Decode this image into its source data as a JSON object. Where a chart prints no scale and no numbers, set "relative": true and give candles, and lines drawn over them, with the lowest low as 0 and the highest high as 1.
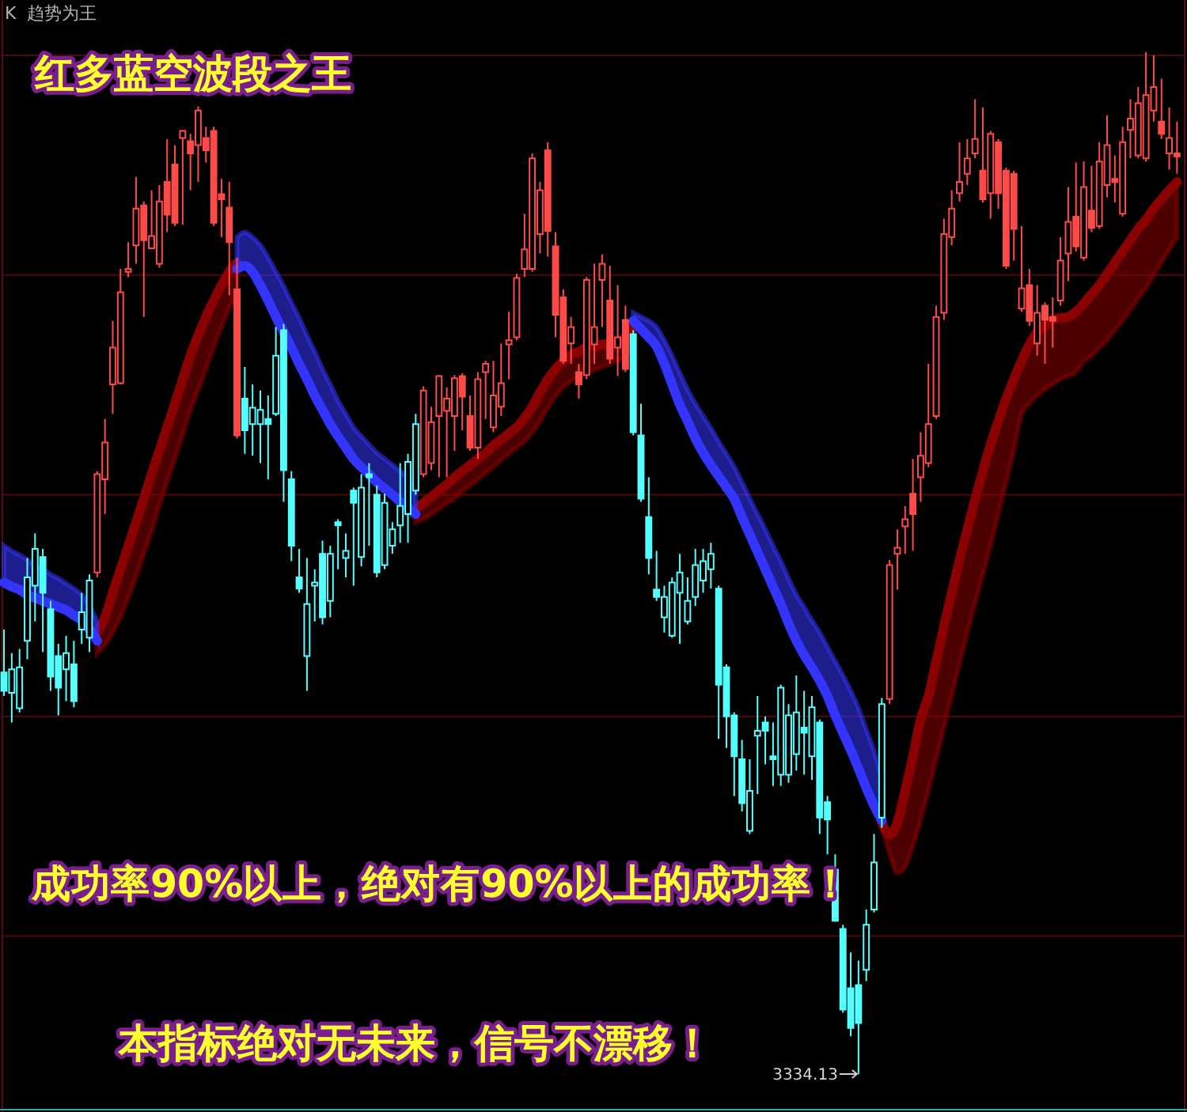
{
  "chart_data": {
    "type": "candlestick",
    "title": "红多蓝空波段之王",
    "subtitle": "K  趋势为王",
    "relative": true,
    "annotations": [
      "成功率90%以上，绝对有90%以上的成功率！",
      "本指标绝对无未来，信号不漂移！",
      "3334.13"
    ],
    "ref_lines": [
      {
        "axis": "y",
        "value": 0.997,
        "color": "#4e0a0a"
      },
      {
        "axis": "y",
        "value": 0.782,
        "color": "#4e0a0a"
      },
      {
        "axis": "y",
        "value": 0.567,
        "color": "#4e0a0a"
      },
      {
        "axis": "y",
        "value": 0.35,
        "color": "#4e0a0a"
      },
      {
        "axis": "y",
        "value": 0.135,
        "color": "#4e0a0a"
      }
    ],
    "categories": [
      null,
      null,
      null,
      null,
      null,
      null,
      null,
      null,
      null,
      null,
      null,
      null,
      null,
      null,
      null,
      null,
      null,
      null,
      null,
      null,
      null,
      null,
      null,
      null,
      null,
      null,
      null,
      null,
      null,
      null,
      null,
      null,
      null,
      null,
      null,
      null,
      null,
      null,
      null,
      null,
      null,
      null,
      null,
      null,
      null,
      null,
      null,
      null,
      null,
      null,
      null,
      null,
      null,
      null,
      null,
      null,
      null,
      null,
      null,
      null,
      null,
      null,
      null,
      null,
      null,
      null,
      null,
      null,
      null,
      null,
      null,
      null,
      null,
      null,
      null,
      null,
      null,
      null,
      null,
      null,
      null,
      null,
      null,
      null,
      null,
      null,
      null,
      null,
      null,
      null,
      null,
      null,
      null,
      null,
      null,
      null,
      null,
      null,
      null,
      null,
      null,
      null,
      null,
      null,
      null,
      null,
      null,
      null,
      null,
      null,
      null,
      null,
      null,
      null,
      null,
      null,
      null,
      null,
      null,
      null,
      null,
      null,
      null,
      null,
      null,
      null,
      null,
      null,
      null,
      null,
      null,
      null,
      null,
      null,
      null,
      null,
      null,
      null,
      null,
      null,
      null,
      null,
      null,
      null,
      null,
      null,
      null,
      null,
      null,
      null,
      null,
      null
    ],
    "series": [
      {
        "type": "line",
        "color": "#8b0000",
        "values": [
          null,
          null,
          null,
          null,
          null,
          null,
          null,
          null,
          null,
          null,
          null,
          null,
          0.432,
          0.447,
          0.471,
          0.494,
          0.517,
          0.54,
          0.563,
          0.587,
          0.61,
          0.633,
          0.656,
          0.68,
          0.703,
          0.723,
          0.741,
          0.757,
          0.772,
          0.785,
          0.794,
          null,
          null,
          null,
          null,
          null,
          null,
          null,
          null,
          null,
          null,
          null,
          null,
          null,
          null,
          null,
          null,
          null,
          null,
          null,
          null,
          null,
          null,
          0.553,
          0.559,
          0.565,
          0.571,
          0.577,
          0.584,
          0.59,
          0.596,
          0.602,
          0.608,
          0.615,
          0.621,
          0.627,
          0.633,
          0.642,
          0.653,
          0.667,
          0.68,
          0.69,
          0.698,
          0.704,
          0.707,
          0.711,
          0.712,
          0.714,
          0.715,
          0.717,
          0.72,
          0.731,
          null,
          null,
          null,
          null,
          null,
          null,
          null,
          null,
          null,
          null,
          null,
          null,
          null,
          null,
          null,
          null,
          null,
          null,
          null,
          null,
          null,
          null,
          null,
          null,
          null,
          null,
          null,
          null,
          null,
          null,
          null,
          0.246,
          0.234,
          0.246,
          0.277,
          0.311,
          0.347,
          0.37,
          0.404,
          0.438,
          0.471,
          0.503,
          0.533,
          0.562,
          0.59,
          0.616,
          0.639,
          0.661,
          0.68,
          0.698,
          0.714,
          0.726,
          0.732,
          0.738,
          0.74,
          0.741,
          0.746,
          0.754,
          0.763,
          0.772,
          0.783,
          0.794,
          0.805,
          0.816,
          0.827,
          0.836,
          0.847,
          0.856,
          0.865,
          0.873
        ],
        "upper": [
          null,
          null,
          null,
          null,
          null,
          null,
          null,
          null,
          null,
          null,
          null,
          null,
          0.432,
          0.447,
          0.471,
          0.494,
          0.517,
          0.54,
          0.563,
          0.587,
          0.61,
          0.633,
          0.656,
          0.68,
          0.703,
          0.723,
          0.741,
          0.757,
          0.772,
          0.785,
          0.794,
          null,
          null,
          null,
          null,
          null,
          null,
          null,
          null,
          null,
          null,
          null,
          null,
          null,
          null,
          null,
          null,
          null,
          null,
          null,
          null,
          null,
          null,
          0.553,
          0.559,
          0.565,
          0.571,
          0.577,
          0.584,
          0.59,
          0.596,
          0.602,
          0.608,
          0.615,
          0.621,
          0.627,
          0.633,
          0.642,
          0.653,
          0.667,
          0.68,
          0.69,
          0.698,
          0.704,
          0.707,
          0.711,
          0.712,
          0.714,
          0.715,
          0.717,
          0.72,
          0.731,
          null,
          null,
          null,
          null,
          null,
          null,
          null,
          null,
          null,
          null,
          null,
          null,
          null,
          null,
          null,
          null,
          null,
          null,
          null,
          null,
          null,
          null,
          null,
          null,
          null,
          null,
          null,
          null,
          null,
          null,
          null,
          0.246,
          0.234,
          0.246,
          0.277,
          0.311,
          0.347,
          0.37,
          0.404,
          0.438,
          0.471,
          0.503,
          0.533,
          0.562,
          0.59,
          0.616,
          0.639,
          0.661,
          0.68,
          0.698,
          0.714,
          0.726,
          0.732,
          0.738,
          0.74,
          0.741,
          0.746,
          0.754,
          0.763,
          0.772,
          0.783,
          0.794,
          0.805,
          0.816,
          0.827,
          0.836,
          0.847,
          0.856,
          0.865,
          0.873
        ],
        "lower": [
          null,
          null,
          null,
          null,
          null,
          null,
          null,
          null,
          null,
          null,
          null,
          null,
          0.412,
          0.42,
          0.432,
          0.447,
          0.466,
          0.486,
          0.509,
          0.531,
          0.556,
          0.579,
          0.602,
          0.625,
          0.649,
          0.669,
          0.69,
          0.711,
          0.731,
          0.749,
          0.768,
          null,
          null,
          null,
          null,
          null,
          null,
          null,
          null,
          null,
          null,
          null,
          null,
          null,
          null,
          null,
          null,
          null,
          null,
          null,
          null,
          null,
          null,
          0.54,
          0.543,
          0.548,
          0.553,
          0.559,
          0.563,
          0.57,
          0.576,
          0.582,
          0.588,
          0.594,
          0.601,
          0.607,
          0.613,
          0.619,
          0.628,
          0.639,
          0.652,
          0.663,
          0.672,
          0.678,
          0.683,
          0.686,
          0.689,
          0.692,
          0.695,
          0.698,
          0.703,
          0.718,
          null,
          null,
          null,
          null,
          null,
          null,
          null,
          null,
          null,
          null,
          null,
          null,
          null,
          null,
          null,
          null,
          null,
          null,
          null,
          null,
          null,
          null,
          null,
          null,
          null,
          null,
          null,
          null,
          null,
          null,
          null,
          0.243,
          0.215,
          0.197,
          0.203,
          0.223,
          0.249,
          0.277,
          0.308,
          0.339,
          0.37,
          0.401,
          0.432,
          0.46,
          0.489,
          0.517,
          0.548,
          0.579,
          0.61,
          0.646,
          0.656,
          0.664,
          0.67,
          0.675,
          0.68,
          0.683,
          0.687,
          0.697,
          0.703,
          0.711,
          0.718,
          0.728,
          0.737,
          0.748,
          0.759,
          0.769,
          0.782,
          0.794,
          0.807,
          0.819
        ]
      },
      {
        "type": "line",
        "color": "#3434ff",
        "values": [
          0.481,
          0.477,
          0.474,
          0.469,
          0.466,
          0.463,
          0.46,
          0.457,
          0.454,
          0.449,
          0.444,
          0.435,
          0.424,
          null,
          null,
          null,
          null,
          null,
          null,
          null,
          null,
          null,
          null,
          null,
          null,
          null,
          null,
          null,
          null,
          null,
          0.788,
          0.791,
          0.785,
          0.772,
          0.757,
          0.741,
          0.726,
          0.711,
          0.695,
          0.68,
          0.664,
          0.65,
          0.636,
          0.624,
          0.613,
          0.602,
          0.594,
          0.587,
          0.579,
          0.573,
          0.567,
          0.56,
          0.554,
          0.548,
          null,
          null,
          null,
          null,
          null,
          null,
          null,
          null,
          null,
          null,
          null,
          null,
          null,
          null,
          null,
          null,
          null,
          null,
          null,
          null,
          null,
          null,
          null,
          null,
          null,
          null,
          null,
          0.737,
          0.729,
          0.721,
          0.712,
          0.695,
          0.675,
          0.655,
          0.639,
          0.622,
          0.608,
          0.596,
          0.585,
          0.574,
          0.563,
          0.545,
          0.528,
          0.511,
          0.494,
          0.477,
          0.46,
          0.441,
          0.424,
          0.41,
          0.398,
          0.385,
          0.37,
          0.351,
          0.334,
          0.317,
          0.299,
          0.28,
          0.263,
          0.248,
          null,
          null,
          null,
          null,
          null,
          null,
          null,
          null,
          null,
          null,
          null,
          null,
          null,
          null,
          null,
          null,
          null,
          null,
          null,
          null,
          null,
          null,
          null,
          null,
          null,
          null,
          null,
          null,
          null,
          null,
          null,
          null,
          null,
          null,
          null,
          null,
          null,
          null
        ],
        "lower": [
          0.481,
          0.477,
          0.474,
          0.469,
          0.466,
          0.463,
          0.46,
          0.457,
          0.454,
          0.449,
          0.444,
          0.435,
          0.424,
          null,
          null,
          null,
          null,
          null,
          null,
          null,
          null,
          null,
          null,
          null,
          null,
          null,
          null,
          null,
          null,
          null,
          0.788,
          0.791,
          0.785,
          0.772,
          0.757,
          0.741,
          0.726,
          0.711,
          0.695,
          0.68,
          0.664,
          0.65,
          0.636,
          0.624,
          0.613,
          0.602,
          0.594,
          0.587,
          0.579,
          0.573,
          0.567,
          0.56,
          0.554,
          0.548,
          null,
          null,
          null,
          null,
          null,
          null,
          null,
          null,
          null,
          null,
          null,
          null,
          null,
          null,
          null,
          null,
          null,
          null,
          null,
          null,
          null,
          null,
          null,
          null,
          null,
          null,
          null,
          0.737,
          0.729,
          0.721,
          0.712,
          0.695,
          0.675,
          0.655,
          0.639,
          0.622,
          0.608,
          0.596,
          0.585,
          0.574,
          0.563,
          0.545,
          0.528,
          0.511,
          0.494,
          0.477,
          0.46,
          0.441,
          0.424,
          0.41,
          0.398,
          0.385,
          0.37,
          0.351,
          0.334,
          0.317,
          0.299,
          0.28,
          0.263,
          0.248,
          null,
          null,
          null,
          null,
          null,
          null,
          null,
          null,
          null,
          null,
          null,
          null,
          null,
          null,
          null,
          null,
          null,
          null,
          null,
          null,
          null,
          null,
          null,
          null,
          null,
          null,
          null,
          null,
          null,
          null,
          null,
          null,
          null,
          null,
          null,
          null,
          null,
          null
        ],
        "upper": [
          0.517,
          0.512,
          0.508,
          0.503,
          0.498,
          0.494,
          0.489,
          0.485,
          0.48,
          0.475,
          0.469,
          0.458,
          0.443,
          null,
          null,
          null,
          null,
          null,
          null,
          null,
          null,
          null,
          null,
          null,
          null,
          null,
          null,
          null,
          null,
          null,
          0.819,
          0.824,
          0.819,
          0.811,
          0.799,
          0.785,
          0.771,
          0.755,
          0.74,
          0.723,
          0.707,
          0.69,
          0.675,
          0.659,
          0.646,
          0.633,
          0.624,
          0.616,
          0.608,
          0.602,
          0.596,
          0.59,
          0.584,
          0.574,
          null,
          null,
          null,
          null,
          null,
          null,
          null,
          null,
          null,
          null,
          null,
          null,
          null,
          null,
          null,
          null,
          null,
          null,
          null,
          null,
          null,
          null,
          null,
          null,
          null,
          null,
          null,
          0.745,
          0.741,
          0.737,
          0.731,
          0.718,
          0.703,
          0.686,
          0.67,
          0.656,
          0.644,
          0.632,
          0.619,
          0.607,
          0.594,
          0.579,
          0.563,
          0.548,
          0.533,
          0.517,
          0.502,
          0.485,
          0.469,
          0.457,
          0.444,
          0.432,
          0.418,
          0.404,
          0.39,
          0.375,
          0.358,
          0.337,
          0.316,
          0.288,
          null,
          null,
          null,
          null,
          null,
          null,
          null,
          null,
          null,
          null,
          null,
          null,
          null,
          null,
          null,
          null,
          null,
          null,
          null,
          null,
          null,
          null,
          null,
          null,
          null,
          null,
          null,
          null,
          null,
          null,
          null,
          null,
          null,
          null,
          null,
          null,
          null,
          null
        ]
      },
      {
        "ohlc": [
          [
            0.393,
            0.435,
            0.37,
            0.375
          ],
          [
            0.373,
            0.412,
            0.344,
            0.396
          ],
          [
            0.358,
            0.416,
            0.354,
            0.398
          ],
          [
            0.424,
            0.505,
            0.406,
            0.486
          ],
          [
            0.478,
            0.529,
            0.443,
            0.514
          ],
          [
            0.506,
            0.514,
            0.413,
            0.471
          ],
          [
            0.455,
            0.463,
            0.375,
            0.389
          ],
          [
            0.409,
            0.421,
            0.351,
            0.378
          ],
          [
            0.396,
            0.429,
            0.365,
            0.412
          ],
          [
            0.401,
            0.424,
            0.359,
            0.365
          ],
          [
            0.435,
            0.471,
            0.421,
            0.452
          ],
          [
            0.427,
            0.489,
            0.413,
            0.483
          ],
          [
            0.491,
            0.59,
            0.486,
            0.587
          ],
          [
            0.582,
            0.641,
            0.548,
            0.618
          ],
          [
            0.675,
            0.737,
            0.646,
            0.711
          ],
          [
            0.676,
            0.788,
            0.675,
            0.765
          ],
          [
            0.785,
            0.814,
            0.78,
            0.788
          ],
          [
            0.811,
            0.878,
            0.793,
            0.847
          ],
          [
            0.85,
            0.854,
            0.741,
            0.816
          ],
          [
            0.808,
            0.865,
            0.807,
            0.82
          ],
          [
            0.793,
            0.87,
            0.789,
            0.854
          ],
          [
            0.873,
            0.915,
            0.824,
            0.841
          ],
          [
            0.89,
            0.909,
            0.83,
            0.833
          ],
          [
            0.916,
            0.924,
            0.831,
            0.923
          ],
          [
            0.913,
            0.92,
            0.865,
            0.901
          ],
          [
            0.909,
            0.947,
            0.873,
            0.943
          ],
          [
            0.916,
            0.927,
            0.892,
            0.904
          ],
          [
            0.923,
            0.927,
            0.83,
            0.833
          ],
          [
            0.861,
            0.876,
            0.819,
            0.856
          ],
          [
            0.848,
            0.873,
            0.762,
            0.814
          ],
          [
            0.768,
            0.799,
            0.622,
            0.625
          ],
          [
            0.661,
            0.692,
            0.607,
            0.63
          ],
          [
            0.636,
            0.675,
            0.605,
            0.652
          ],
          [
            0.636,
            0.669,
            0.598,
            0.65
          ],
          [
            0.641,
            0.664,
            0.582,
            0.636
          ],
          [
            0.646,
            0.731,
            0.644,
            0.703
          ],
          [
            0.728,
            0.734,
            0.56,
            0.591
          ],
          [
            0.582,
            0.59,
            0.502,
            0.517
          ],
          [
            0.486,
            0.514,
            0.471,
            0.475
          ],
          [
            0.409,
            0.505,
            0.375,
            0.46
          ],
          [
            0.478,
            0.494,
            0.443,
            0.481
          ],
          [
            0.509,
            0.522,
            0.44,
            0.447
          ],
          [
            0.463,
            0.517,
            0.447,
            0.509
          ],
          [
            0.54,
            0.543,
            0.494,
            0.537
          ],
          [
            0.505,
            0.529,
            0.486,
            0.512
          ],
          [
            0.571,
            0.574,
            0.478,
            0.559
          ],
          [
            0.506,
            0.587,
            0.497,
            0.574
          ],
          [
            0.587,
            0.598,
            0.517,
            0.584
          ],
          [
            0.567,
            0.576,
            0.486,
            0.491
          ],
          [
            0.498,
            0.568,
            0.494,
            0.559
          ],
          [
            0.517,
            0.54,
            0.509,
            0.533
          ],
          [
            0.537,
            0.598,
            0.52,
            0.556
          ],
          [
            0.548,
            0.607,
            0.52,
            0.599
          ],
          [
            0.571,
            0.646,
            0.567,
            0.636
          ],
          [
            0.587,
            0.673,
            0.584,
            0.669
          ],
          [
            0.598,
            0.653,
            0.591,
            0.638
          ],
          [
            0.644,
            0.684,
            0.584,
            0.683
          ],
          [
            0.649,
            0.672,
            0.584,
            0.661
          ],
          [
            0.644,
            0.684,
            0.61,
            0.681
          ],
          [
            0.683,
            0.686,
            0.63,
            0.663
          ],
          [
            0.644,
            0.664,
            0.61,
            0.613
          ],
          [
            0.613,
            0.687,
            0.602,
            0.68
          ],
          [
            0.687,
            0.698,
            0.641,
            0.695
          ],
          [
            0.633,
            0.698,
            0.628,
            0.664
          ],
          [
            0.653,
            0.715,
            0.644,
            0.676
          ],
          [
            0.714,
            0.746,
            0.68,
            0.718
          ],
          [
            0.721,
            0.783,
            0.718,
            0.779
          ],
          [
            0.788,
            0.842,
            0.78,
            0.807
          ],
          [
            0.788,
            0.901,
            0.785,
            0.896
          ],
          [
            0.822,
            0.873,
            0.803,
            0.865
          ],
          [
            0.904,
            0.912,
            0.8,
            0.825
          ],
          [
            0.81,
            0.824,
            0.721,
            0.743
          ],
          [
            0.76,
            0.768,
            0.695,
            0.698
          ],
          [
            0.715,
            0.741,
            0.695,
            0.731
          ],
          [
            0.687,
            0.695,
            0.661,
            0.675
          ],
          [
            0.684,
            0.78,
            0.68,
            0.777
          ],
          [
            0.714,
            0.793,
            0.695,
            0.731
          ],
          [
            0.777,
            0.802,
            0.731,
            0.793
          ],
          [
            0.757,
            0.791,
            0.695,
            0.7
          ],
          [
            0.711,
            0.772,
            0.683,
            0.721
          ],
          [
            0.738,
            0.752,
            0.687,
            0.69
          ],
          [
            0.724,
            0.728,
            0.625,
            0.628
          ],
          [
            0.625,
            0.656,
            0.56,
            0.563
          ],
          [
            0.545,
            0.584,
            0.489,
            0.505
          ],
          [
            0.474,
            0.512,
            0.463,
            0.467
          ],
          [
            0.447,
            0.478,
            0.432,
            0.467
          ],
          [
            0.429,
            0.486,
            0.427,
            0.481
          ],
          [
            0.471,
            0.509,
            0.421,
            0.491
          ],
          [
            0.443,
            0.486,
            0.44,
            0.463
          ],
          [
            0.467,
            0.514,
            0.458,
            0.498
          ],
          [
            0.483,
            0.514,
            0.471,
            0.502
          ],
          [
            0.494,
            0.52,
            0.475,
            0.509
          ],
          [
            0.475,
            0.478,
            0.328,
            0.381
          ],
          [
            0.398,
            0.401,
            0.319,
            0.35
          ],
          [
            0.351,
            0.354,
            0.272,
            0.311
          ],
          [
            0.308,
            0.327,
            0.257,
            0.265
          ],
          [
            0.238,
            0.308,
            0.235,
            0.277
          ],
          [
            0.331,
            0.37,
            0.274,
            0.336
          ],
          [
            0.344,
            0.35,
            0.303,
            0.336
          ],
          [
            0.311,
            0.344,
            0.282,
            0.308
          ],
          [
            0.293,
            0.381,
            0.282,
            0.378
          ],
          [
            0.293,
            0.362,
            0.285,
            0.351
          ],
          [
            0.313,
            0.39,
            0.297,
            0.354
          ],
          [
            0.339,
            0.375,
            0.293,
            0.334
          ],
          [
            0.311,
            0.37,
            0.288,
            0.359
          ],
          [
            0.344,
            0.347,
            0.235,
            0.251
          ],
          [
            0.266,
            0.272,
            0.215,
            0.249
          ],
          [
            0.2,
            0.215,
            0.149,
            0.15
          ],
          [
            0.142,
            0.146,
            0.06,
            0.063
          ],
          [
            0.084,
            0.119,
            0.037,
            0.045
          ],
          [
            0.087,
            0.111,
            0,
            0.05
          ],
          [
            0.102,
            0.161,
            0.091,
            0.146
          ],
          [
            0.161,
            0.235,
            0.158,
            0.207
          ],
          [
            0.251,
            0.368,
            0.241,
            0.362
          ],
          [
            0.367,
            0.503,
            0.362,
            0.498
          ],
          [
            0.509,
            0.533,
            0.474,
            0.515
          ],
          [
            0.536,
            0.556,
            0.509,
            0.543
          ],
          [
            0.568,
            0.602,
            0.512,
            0.548
          ],
          [
            0.584,
            0.628,
            0.56,
            0.605
          ],
          [
            0.598,
            0.695,
            0.594,
            0.636
          ],
          [
            0.644,
            0.752,
            0.641,
            0.741
          ],
          [
            0.745,
            0.837,
            0.738,
            0.822
          ],
          [
            0.819,
            0.865,
            0.811,
            0.847
          ],
          [
            0.862,
            0.912,
            0.854,
            0.873
          ],
          [
            0.881,
            0.915,
            0.87,
            0.896
          ],
          [
            0.901,
            0.954,
            0.896,
            0.915
          ],
          [
            0.884,
            0.946,
            0.853,
            0.856
          ],
          [
            0.862,
            0.923,
            0.837,
            0.92
          ],
          [
            0.912,
            0.915,
            0.847,
            0.862
          ],
          [
            0.884,
            0.887,
            0.788,
            0.791
          ],
          [
            0.881,
            0.884,
            0.796,
            0.827
          ],
          [
            0.749,
            0.83,
            0.746,
            0.769
          ],
          [
            0.772,
            0.788,
            0.732,
            0.737
          ],
          [
            0.715,
            0.772,
            0.703,
            0.745
          ],
          [
            0.752,
            0.755,
            0.695,
            0.738
          ],
          [
            0.741,
            0.76,
            0.711,
            0.737
          ],
          [
            0.757,
            0.819,
            0.752,
            0.796
          ],
          [
            0.803,
            0.868,
            0.776,
            0.834
          ],
          [
            0.839,
            0.892,
            0.805,
            0.81
          ],
          [
            0.799,
            0.893,
            0.796,
            0.868
          ],
          [
            0.845,
            0.889,
            0.824,
            0.828
          ],
          [
            0.83,
            0.912,
            0.827,
            0.893
          ],
          [
            0.87,
            0.938,
            0.858,
            0.909
          ],
          [
            0.876,
            0.899,
            0.853,
            0.873
          ],
          [
            0.842,
            0.927,
            0.839,
            0.912
          ],
          [
            0.924,
            0.954,
            0.896,
            0.935
          ],
          [
            0.899,
            0.966,
            0.896,
            0.95
          ],
          [
            0.896,
            1,
            0.893,
            0.958
          ],
          [
            0.943,
            0.997,
            0.932,
            0.966
          ],
          [
            0.932,
            0.974,
            0.915,
            0.92
          ],
          [
            0.901,
            0.946,
            0.885,
            0.916
          ],
          [
            0.901,
            0.932,
            0.881,
            0.898
          ]
        ],
        "colors": [
          "#54ffff",
          "#54ffff",
          "#54ffff",
          "#54ffff",
          "#54ffff",
          "#54ffff",
          "#54ffff",
          "#54ffff",
          "#54ffff",
          "#54ffff",
          "#54ffff",
          "#54ffff",
          "#ff4a4a",
          "#ff4a4a",
          "#ff4a4a",
          "#ff4a4a",
          "#ff4a4a",
          "#ff4a4a",
          "#ff4a4a",
          "#ff4a4a",
          "#ff4a4a",
          "#ff4a4a",
          "#ff4a4a",
          "#ff4a4a",
          "#ff4a4a",
          "#ff4a4a",
          "#ff4a4a",
          "#ff4a4a",
          "#ff4a4a",
          "#ff4a4a",
          "#ff4a4a",
          "#54ffff",
          "#54ffff",
          "#54ffff",
          "#54ffff",
          "#54ffff",
          "#54ffff",
          "#54ffff",
          "#54ffff",
          "#54ffff",
          "#54ffff",
          "#54ffff",
          "#54ffff",
          "#54ffff",
          "#54ffff",
          "#54ffff",
          "#54ffff",
          "#54ffff",
          "#54ffff",
          "#54ffff",
          "#54ffff",
          "#54ffff",
          "#54ffff",
          "#54ffff",
          "#ff4a4a",
          "#ff4a4a",
          "#ff4a4a",
          "#ff4a4a",
          "#ff4a4a",
          "#ff4a4a",
          "#ff4a4a",
          "#ff4a4a",
          "#ff4a4a",
          "#ff4a4a",
          "#ff4a4a",
          "#ff4a4a",
          "#ff4a4a",
          "#ff4a4a",
          "#ff4a4a",
          "#ff4a4a",
          "#ff4a4a",
          "#ff4a4a",
          "#ff4a4a",
          "#ff4a4a",
          "#ff4a4a",
          "#ff4a4a",
          "#ff4a4a",
          "#ff4a4a",
          "#ff4a4a",
          "#ff4a4a",
          "#ff4a4a",
          "#54ffff",
          "#54ffff",
          "#54ffff",
          "#54ffff",
          "#54ffff",
          "#54ffff",
          "#54ffff",
          "#54ffff",
          "#54ffff",
          "#54ffff",
          "#54ffff",
          "#54ffff",
          "#54ffff",
          "#54ffff",
          "#54ffff",
          "#54ffff",
          "#54ffff",
          "#54ffff",
          "#54ffff",
          "#54ffff",
          "#54ffff",
          "#54ffff",
          "#54ffff",
          "#54ffff",
          "#54ffff",
          "#54ffff",
          "#54ffff",
          "#54ffff",
          "#54ffff",
          "#54ffff",
          "#54ffff",
          "#54ffff",
          "#54ffff",
          "#ff4a4a",
          "#ff4a4a",
          "#ff4a4a",
          "#ff4a4a",
          "#ff4a4a",
          "#ff4a4a",
          "#ff4a4a",
          "#ff4a4a",
          "#ff4a4a",
          "#ff4a4a",
          "#ff4a4a",
          "#ff4a4a",
          "#ff4a4a",
          "#ff4a4a",
          "#ff4a4a",
          "#ff4a4a",
          "#ff4a4a",
          "#ff4a4a",
          "#ff4a4a",
          "#ff4a4a",
          "#ff4a4a",
          "#ff4a4a",
          "#ff4a4a",
          "#ff4a4a",
          "#ff4a4a",
          "#ff4a4a",
          "#ff4a4a",
          "#ff4a4a",
          "#ff4a4a",
          "#ff4a4a",
          "#ff4a4a",
          "#ff4a4a",
          "#ff4a4a",
          "#ff4a4a",
          "#ff4a4a",
          "#ff4a4a",
          "#ff4a4a",
          "#ff4a4a"
        ]
      }
    ]
  }
}
